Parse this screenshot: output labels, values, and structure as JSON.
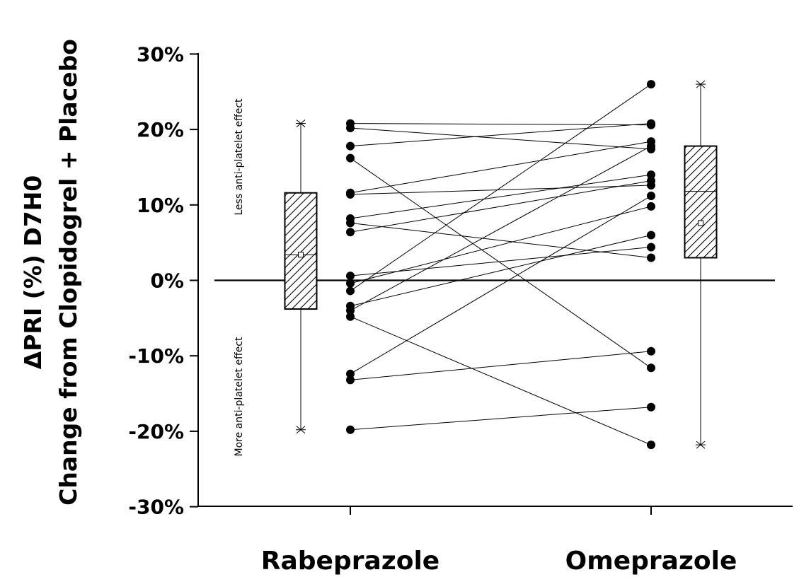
{
  "chart_data": {
    "type": "scatter",
    "ylabel_lines": [
      "ΔPRI (%) D7H0",
      "Change from Clopidogrel + Placebo"
    ],
    "xlabel": "",
    "categories": [
      "Rabeprazole",
      "Omeprazole"
    ],
    "y_tick_values": [
      30,
      20,
      10,
      0,
      -10,
      -20,
      -30
    ],
    "y_tick_labels": [
      "30%",
      "20%",
      "10%",
      "0%",
      "-10%",
      "-20%",
      "-30%"
    ],
    "ylim": [
      -30,
      30
    ],
    "reference_line": 0,
    "annotations": [
      "Less anti-platelet effect",
      "More anti-platelet effect"
    ],
    "boxes": [
      {
        "category": "Rabeprazole",
        "min": -19.8,
        "q1": -3.8,
        "median": 3.4,
        "mean": 3.4,
        "q3": 11.6,
        "max": 20.8
      },
      {
        "category": "Omeprazole",
        "min": -21.8,
        "q1": 3.0,
        "median": 11.8,
        "mean": 7.6,
        "q3": 17.8,
        "max": 26.0
      }
    ],
    "paired_points": [
      {
        "rabeprazole": 20.8,
        "omeprazole": 20.6
      },
      {
        "rabeprazole": 20.2,
        "omeprazole": 17.4
      },
      {
        "rabeprazole": 17.8,
        "omeprazole": 20.8
      },
      {
        "rabeprazole": 16.2,
        "omeprazole": -11.6
      },
      {
        "rabeprazole": 11.6,
        "omeprazole": 18.4
      },
      {
        "rabeprazole": 11.4,
        "omeprazole": 12.6
      },
      {
        "rabeprazole": 8.2,
        "omeprazole": 14.0
      },
      {
        "rabeprazole": 7.6,
        "omeprazole": 3.0
      },
      {
        "rabeprazole": 6.4,
        "omeprazole": 13.2
      },
      {
        "rabeprazole": 0.6,
        "omeprazole": 4.4
      },
      {
        "rabeprazole": -0.4,
        "omeprazole": 9.8
      },
      {
        "rabeprazole": -1.4,
        "omeprazole": 26.0
      },
      {
        "rabeprazole": -3.4,
        "omeprazole": 6.0
      },
      {
        "rabeprazole": -4.0,
        "omeprazole": 17.8
      },
      {
        "rabeprazole": -4.8,
        "omeprazole": -21.8
      },
      {
        "rabeprazole": -12.4,
        "omeprazole": 11.2
      },
      {
        "rabeprazole": -13.2,
        "omeprazole": -9.4
      },
      {
        "rabeprazole": -19.8,
        "omeprazole": -16.8
      }
    ]
  }
}
